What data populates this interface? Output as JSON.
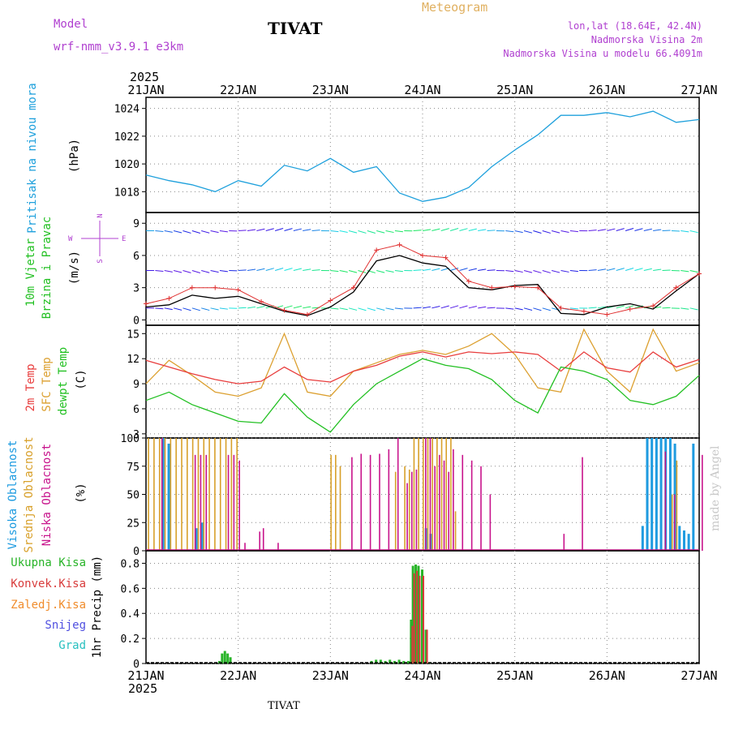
{
  "header": {
    "model_label": "Model",
    "model_name": "wrf-nmm_v3.9.1 e3km",
    "station": "TIVAT",
    "chart_title": "Meteogram",
    "lonlat": "lon,lat (18.64E, 42.4N)",
    "height": "Nadmorska Visina 2m",
    "model_height": "Nadmorska Visina u modelu 66.4091m",
    "footer_station": "TIVAT",
    "signature": "made by Angel"
  },
  "colors": {
    "pressure": "#1ea0dc",
    "temp2m": "#e83c3c",
    "sfc": "#dca030",
    "dewpt": "#22c022",
    "high_cloud": "#1e9be0",
    "mid_cloud": "#d8a02a",
    "low_cloud": "#c8148c",
    "precip_total": "#28b428",
    "precip_conv": "#d83c3c",
    "precip_frz": "#f08c2c",
    "snow": "#5050e0",
    "hail": "#28c0c0",
    "model_purple": "#b040d0",
    "title_gold": "#e0b060",
    "windspeed_line": "#000000",
    "gust_marker": "#e03030"
  },
  "chart_data": [
    {
      "type": "line",
      "title": "Pritisak na nivou mora",
      "ylabel": "(hPa)",
      "ylim": [
        1016.5,
        1024.8
      ],
      "yticks": [
        "1018",
        "1020",
        "1022",
        "1024"
      ],
      "x_label_top_year": "2025",
      "x_labels": [
        "21JAN",
        "22JAN",
        "23JAN",
        "24JAN",
        "25JAN",
        "26JAN",
        "27JAN"
      ],
      "x_days": [
        0,
        0.25,
        0.5,
        0.75,
        1.0,
        1.25,
        1.5,
        1.75,
        2.0,
        2.25,
        2.5,
        2.75,
        3.0,
        3.25,
        3.5,
        3.75,
        4.0,
        4.25,
        4.5,
        4.75,
        5.0,
        5.25,
        5.5,
        5.75,
        6.0
      ],
      "values": [
        1019.2,
        1018.8,
        1018.5,
        1018.0,
        1018.8,
        1018.4,
        1019.9,
        1019.5,
        1020.4,
        1019.4,
        1019.8,
        1017.9,
        1017.3,
        1017.6,
        1018.3,
        1019.8,
        1021.0,
        1022.1,
        1023.5,
        1023.5,
        1023.7,
        1023.4,
        1023.8,
        1023.0,
        1023.2
      ]
    },
    {
      "type": "line",
      "title_line1": "10m Vjetar",
      "title_line2": "Brzina i Pravac",
      "ylabel": "(m/s)",
      "ylim": [
        -0.5,
        10
      ],
      "yticks": [
        "0",
        "3",
        "6",
        "9"
      ],
      "compass": {
        "n": "N",
        "s": "S",
        "w": "W",
        "e": "E"
      },
      "x_days": [
        0,
        0.25,
        0.5,
        0.75,
        1.0,
        1.25,
        1.5,
        1.75,
        2.0,
        2.25,
        2.5,
        2.75,
        3.0,
        3.25,
        3.5,
        3.75,
        4.0,
        4.25,
        4.5,
        4.75,
        5.0,
        5.25,
        5.5,
        5.75,
        6.0
      ],
      "series": [
        {
          "name": "speed",
          "values": [
            1.2,
            1.4,
            2.3,
            2.0,
            2.2,
            1.5,
            0.8,
            0.4,
            1.2,
            2.6,
            5.5,
            6.0,
            5.3,
            5.0,
            3.0,
            2.8,
            3.2,
            3.3,
            0.6,
            0.5,
            1.2,
            1.5,
            1.0,
            2.7,
            4.3
          ]
        },
        {
          "name": "gust",
          "values": [
            1.5,
            2.0,
            3.0,
            3.0,
            2.8,
            1.7,
            0.9,
            0.5,
            1.8,
            3.0,
            6.5,
            7.0,
            6.0,
            5.8,
            3.6,
            3.0,
            3.1,
            3.0,
            1.1,
            0.8,
            0.5,
            1.0,
            1.3,
            3.0,
            4.3
          ]
        }
      ]
    },
    {
      "type": "line",
      "titles": [
        "2m Temp",
        "SFC Temp",
        "dewpt Temp"
      ],
      "ylabel": "(C)",
      "ylim": [
        2.5,
        16
      ],
      "yticks": [
        "3",
        "6",
        "9",
        "12",
        "15"
      ],
      "x_days": [
        0,
        0.25,
        0.5,
        0.75,
        1.0,
        1.25,
        1.5,
        1.75,
        2.0,
        2.25,
        2.5,
        2.75,
        3.0,
        3.25,
        3.5,
        3.75,
        4.0,
        4.25,
        4.5,
        4.75,
        5.0,
        5.25,
        5.5,
        5.75,
        6.0
      ],
      "series": [
        {
          "name": "2m Temp",
          "values": [
            11.8,
            11.0,
            10.2,
            9.5,
            9.0,
            9.3,
            11.0,
            9.5,
            9.2,
            10.5,
            11.2,
            12.3,
            12.8,
            12.2,
            12.8,
            12.6,
            12.8,
            12.5,
            10.5,
            12.8,
            10.9,
            10.4,
            12.8,
            11.0,
            11.9
          ]
        },
        {
          "name": "SFC Temp",
          "values": [
            9.0,
            11.8,
            10.0,
            8.0,
            7.5,
            8.5,
            15.0,
            8.0,
            7.5,
            10.5,
            11.5,
            12.5,
            13.0,
            12.5,
            13.5,
            15.0,
            12.5,
            8.5,
            8.0,
            15.5,
            10.5,
            8.0,
            15.5,
            10.5,
            11.5
          ]
        },
        {
          "name": "dewpt Temp",
          "values": [
            7.0,
            8.0,
            6.5,
            5.5,
            4.5,
            4.3,
            7.8,
            5.0,
            3.2,
            6.5,
            9.0,
            10.5,
            12.0,
            11.2,
            10.8,
            9.5,
            7.0,
            5.5,
            11.0,
            10.5,
            9.5,
            7.0,
            6.5,
            7.5,
            10.0
          ]
        }
      ]
    },
    {
      "type": "bar",
      "titles": [
        "Visoka Oblacnost",
        "Srednja Oblacnost",
        "Niska Oblacnost"
      ],
      "ylabel": "(%)",
      "ylim": [
        0,
        100
      ],
      "yticks": [
        "0",
        "25",
        "50",
        "75",
        "100"
      ],
      "x_days": [
        0.02,
        0.08,
        0.14,
        0.2,
        0.26,
        0.32,
        0.38,
        0.44,
        0.5,
        0.56,
        0.62,
        0.68,
        0.74,
        0.8,
        0.86,
        0.92,
        0.98,
        1.04,
        1.1,
        1.16,
        1.2,
        1.24,
        1.3,
        1.35,
        1.4,
        1.45,
        1.5,
        1.6,
        1.7,
        1.85,
        1.95,
        2.0,
        2.05,
        2.1,
        2.2,
        2.3,
        2.4,
        2.5,
        2.6,
        2.7,
        2.8,
        2.85,
        2.9,
        2.95,
        3.0,
        3.05,
        3.1,
        3.15,
        3.2,
        3.25,
        3.3,
        3.35,
        3.4,
        3.5,
        3.6,
        3.7,
        3.8,
        3.9,
        4.5,
        4.6,
        4.7,
        5.4,
        5.45,
        5.5,
        5.55,
        5.6,
        5.65,
        5.7,
        5.75,
        5.8,
        5.85,
        5.9,
        5.95,
        6.0
      ],
      "series": [
        {
          "name": "Visoka Oblacnost",
          "values": [
            0,
            0,
            0,
            100,
            95,
            0,
            0,
            0,
            0,
            20,
            25,
            0,
            0,
            0,
            0,
            0,
            0,
            0,
            0,
            0,
            0,
            0,
            0,
            0,
            0,
            0,
            0,
            0,
            0,
            0,
            0,
            0,
            0,
            0,
            0,
            0,
            0,
            0,
            0,
            0,
            0,
            0,
            0,
            0,
            0,
            20,
            15,
            0,
            0,
            0,
            0,
            0,
            0,
            0,
            0,
            0,
            0,
            0,
            0,
            0,
            0,
            22,
            100,
            100,
            100,
            100,
            100,
            100,
            95,
            22,
            18,
            15,
            95,
            0
          ]
        },
        {
          "name": "Srednja Oblacnost",
          "values": [
            100,
            100,
            100,
            100,
            100,
            100,
            100,
            100,
            100,
            100,
            100,
            100,
            100,
            100,
            100,
            100,
            100,
            0,
            0,
            0,
            0,
            0,
            0,
            0,
            0,
            0,
            0,
            0,
            0,
            0,
            0,
            85,
            85,
            75,
            0,
            0,
            0,
            0,
            0,
            70,
            75,
            72,
            100,
            100,
            100,
            100,
            100,
            100,
            100,
            100,
            100,
            35,
            0,
            0,
            0,
            0,
            0,
            0,
            0,
            0,
            0,
            0,
            0,
            0,
            0,
            0,
            0,
            50,
            80,
            0,
            0,
            0,
            0,
            0
          ]
        },
        {
          "name": "Niska Oblacnost",
          "values": [
            0,
            0,
            100,
            0,
            0,
            0,
            0,
            0,
            85,
            85,
            85,
            0,
            0,
            0,
            85,
            85,
            80,
            7,
            0,
            0,
            17,
            20,
            0,
            0,
            7,
            0,
            0,
            0,
            0,
            0,
            0,
            0,
            0,
            0,
            83,
            86,
            85,
            86,
            90,
            100,
            60,
            70,
            72,
            0,
            100,
            100,
            75,
            85,
            80,
            70,
            90,
            0,
            85,
            80,
            75,
            50,
            0,
            0,
            15,
            0,
            83,
            0,
            0,
            0,
            0,
            88,
            0,
            50,
            0,
            0,
            0,
            0,
            0,
            85
          ]
        }
      ]
    },
    {
      "type": "bar",
      "titles": [
        "Ukupna Kisa",
        "Konvek.Kisa",
        "Zaledj.Kisa",
        "Snijeg",
        "Grad"
      ],
      "ylabel": "1hr Precip (mm)",
      "ylim": [
        0,
        0.9
      ],
      "yticks": [
        "0",
        "0.2",
        "0.4",
        "0.6",
        "0.8"
      ],
      "x_labels": [
        "21JAN",
        "22JAN",
        "23JAN",
        "24JAN",
        "25JAN",
        "26JAN",
        "27JAN"
      ],
      "x_label_bottom_year": "2025",
      "x_days": [
        0.8,
        0.83,
        0.86,
        0.89,
        0.92,
        2.45,
        2.5,
        2.55,
        2.6,
        2.65,
        2.7,
        2.75,
        2.8,
        2.85,
        2.88,
        2.9,
        2.93,
        2.96,
        3.0,
        3.04,
        3.08
      ],
      "series": [
        {
          "name": "Ukupna Kisa",
          "values": [
            0.02,
            0.08,
            0.1,
            0.08,
            0.05,
            0.02,
            0.03,
            0.03,
            0.02,
            0.03,
            0.02,
            0.03,
            0.02,
            0.02,
            0.35,
            0.78,
            0.79,
            0.78,
            0.75,
            0.27,
            0.01
          ]
        },
        {
          "name": "Konvek.Kisa",
          "values": [
            0,
            0,
            0,
            0,
            0,
            0,
            0,
            0,
            0,
            0,
            0,
            0,
            0,
            0,
            0.3,
            0.72,
            0.74,
            0.7,
            0.7,
            0.27,
            0
          ]
        }
      ]
    }
  ]
}
